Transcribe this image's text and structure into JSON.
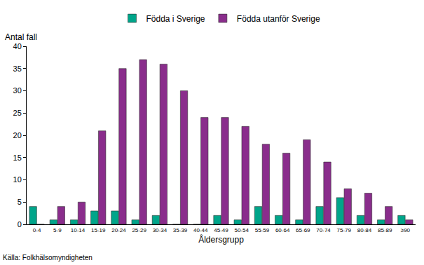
{
  "chart_data": {
    "type": "bar",
    "ylabel": "Antal fall",
    "xlabel": "Åldersgrupp",
    "annotations": [
      "Källa: Folkhälsomyndigheten"
    ],
    "categories": [
      "0-4",
      "5-9",
      "10-14",
      "15-19",
      "20-24",
      "25-29",
      "30-34",
      "35-39",
      "40-44",
      "45-49",
      "50-54",
      "55-59",
      "60-64",
      "65-69",
      "70-74",
      "75-79",
      "80-84",
      "85-89",
      "≥90"
    ],
    "series": [
      {
        "name": "Födda i Sverige",
        "color": "#00a58a",
        "values": [
          4,
          1,
          1,
          3,
          3,
          1,
          2,
          0,
          0,
          2,
          1,
          4,
          2,
          1,
          4,
          6,
          2,
          1,
          2
        ]
      },
      {
        "name": "Födda utanför Sverige",
        "color": "#8a2d8c",
        "values": [
          0,
          4,
          5,
          21,
          35,
          37,
          36,
          30,
          24,
          24,
          22,
          18,
          16,
          19,
          14,
          8,
          7,
          4,
          1
        ]
      }
    ],
    "ylim": [
      0,
      40
    ],
    "yticks": [
      0,
      5,
      10,
      15,
      20,
      25,
      30,
      35,
      40
    ],
    "grid": false,
    "legend": "top"
  }
}
